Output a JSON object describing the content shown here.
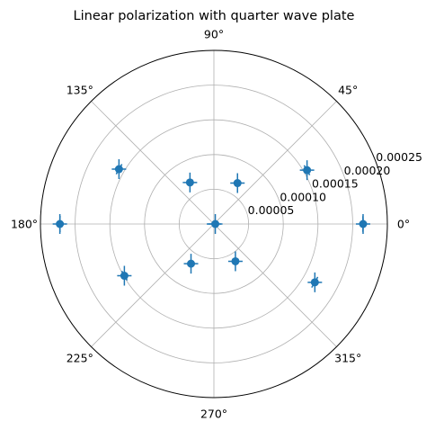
{
  "chart_data": {
    "type": "scatter",
    "projection": "polar",
    "title": "Linear polarization with quarter wave plate",
    "theta_tick_labels": [
      "0°",
      "45°",
      "90°",
      "135°",
      "180°",
      "225°",
      "270°",
      "315°"
    ],
    "theta_ticks_deg": [
      0,
      45,
      90,
      135,
      180,
      225,
      270,
      315
    ],
    "r_ticks": [
      5e-05,
      0.0001,
      0.00015,
      0.0002,
      0.00025
    ],
    "r_tick_labels": [
      "0.00005",
      "0.00010",
      "0.00015",
      "0.00020",
      "0.00025"
    ],
    "rlim": [
      0,
      0.00025
    ],
    "r_label_angle_deg": 22.5,
    "grid": true,
    "marker_color": "#1f77b4",
    "errorbars": true,
    "theta_err_deg": 3,
    "r_err": 7e-06,
    "points": [
      {
        "theta_deg": 0,
        "r": 0.000215
      },
      {
        "theta_deg": 30,
        "r": 0.000155
      },
      {
        "theta_deg": 60,
        "r": 6.8e-05
      },
      {
        "theta_deg": 120,
        "r": 6.9e-05
      },
      {
        "theta_deg": 150,
        "r": 0.000158
      },
      {
        "theta_deg": 180,
        "r": 0.000222
      },
      {
        "theta_deg": 210,
        "r": 0.000149
      },
      {
        "theta_deg": 240,
        "r": 6.6e-05
      },
      {
        "theta_deg": 300,
        "r": 6.2e-05
      },
      {
        "theta_deg": 330,
        "r": 0.000168
      },
      {
        "theta_deg": 0,
        "r": 2e-06
      }
    ]
  }
}
